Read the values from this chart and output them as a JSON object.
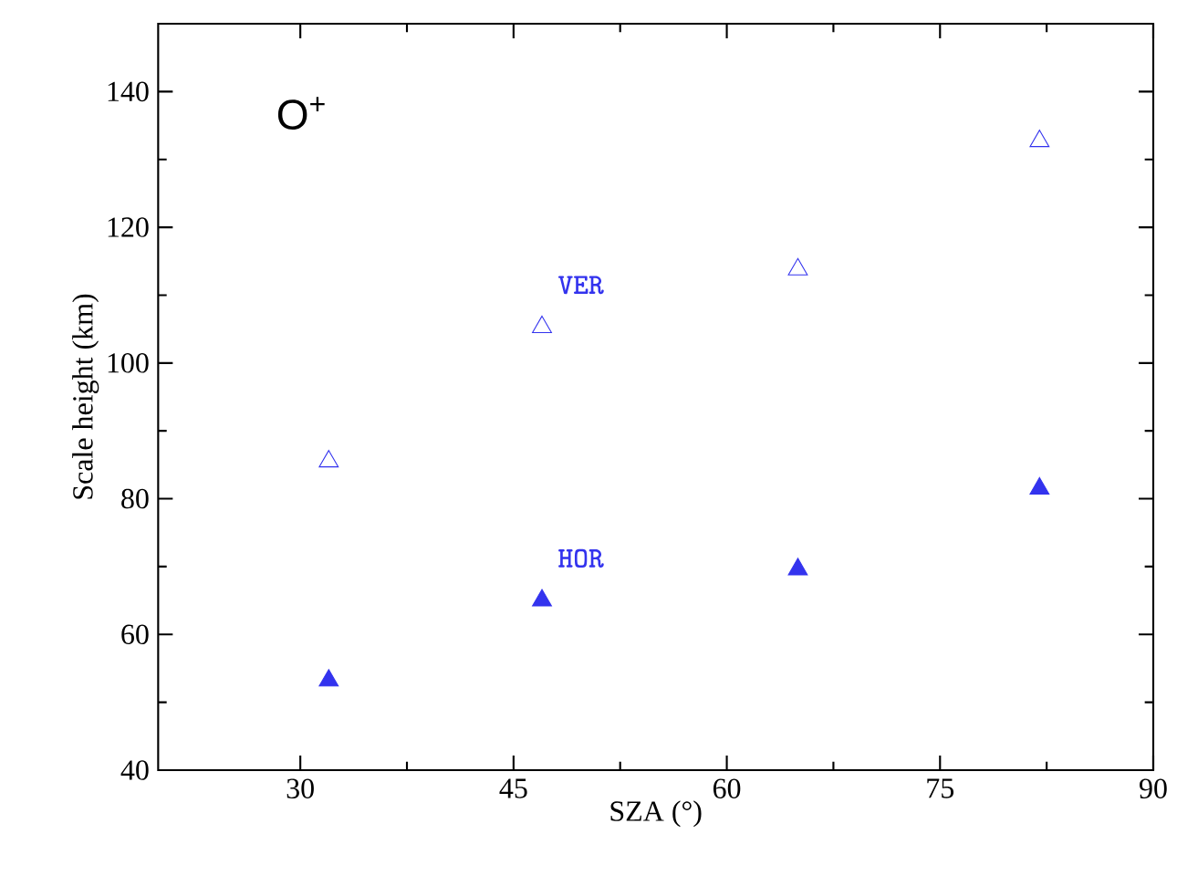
{
  "chart_data": {
    "type": "scatter",
    "xlabel": "SZA (°)",
    "ylabel": "Scale height (km)",
    "annotations": [
      "O$^{+}$"
    ],
    "x": [
      32,
      47,
      65,
      82
    ],
    "series": [
      {
        "name": "VER",
        "color": "#3333ee",
        "values": [
          85.5,
          105.3,
          113.8,
          132.7
        ]
      },
      {
        "name": "HOR",
        "color": "#3333ee",
        "values": [
          53.2,
          65.0,
          69.6,
          81.5
        ]
      }
    ],
    "xlim": [
      20,
      90
    ],
    "ylim": [
      40,
      150
    ],
    "xticks": [
      30,
      45,
      60,
      75,
      90
    ],
    "yticks": [
      40,
      60,
      80,
      100,
      120,
      140
    ],
    "marker": "triangle",
    "grid": false
  }
}
